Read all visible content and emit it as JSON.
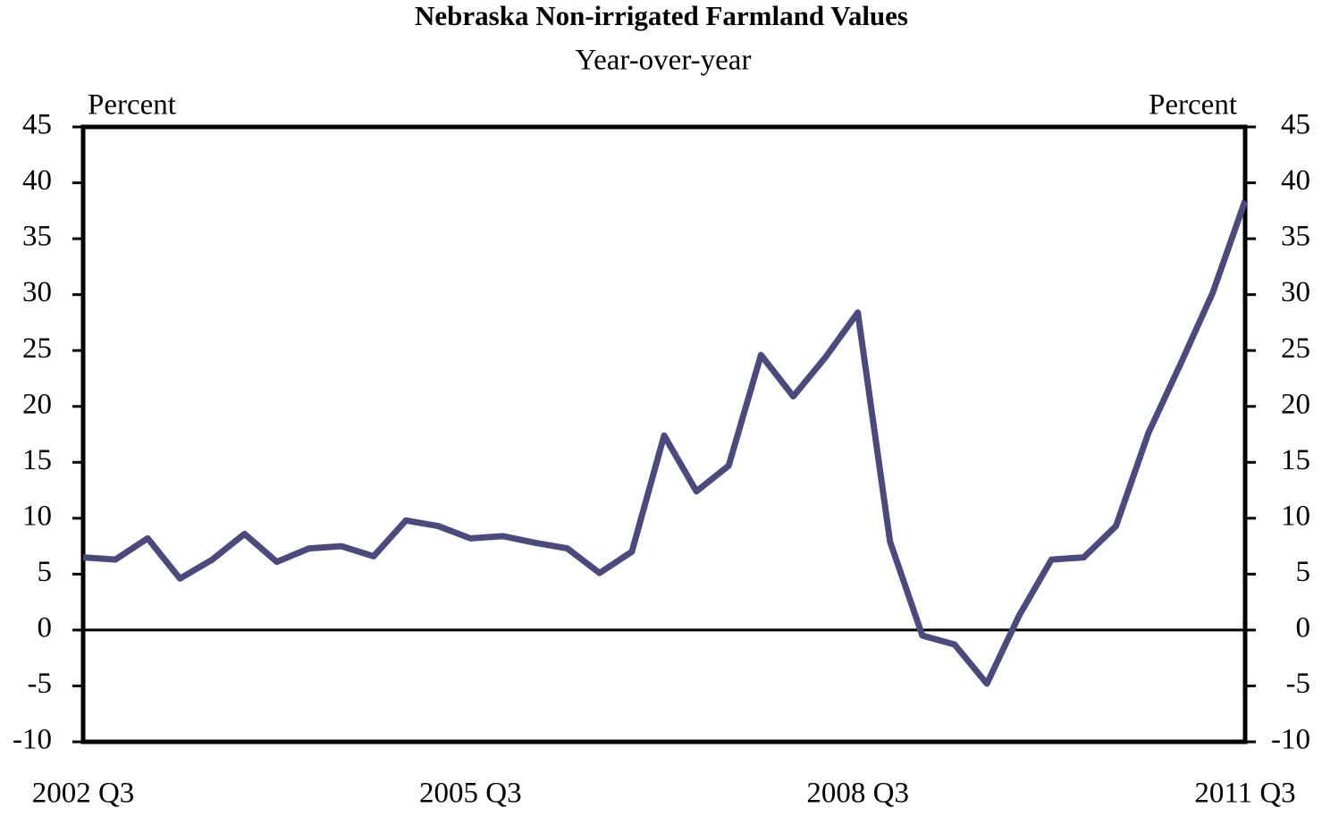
{
  "chart_data": {
    "type": "line",
    "title": "Nebraska Non-irrigated Farmland Values",
    "subtitle": "Year-over-year",
    "y_label": "Percent",
    "y2_label": "Percent",
    "categories": [
      "2002 Q3",
      null,
      null,
      null,
      null,
      null,
      null,
      null,
      null,
      null,
      null,
      null,
      "2005 Q3",
      null,
      null,
      null,
      null,
      null,
      null,
      null,
      null,
      null,
      null,
      null,
      "2008 Q3",
      null,
      null,
      null,
      null,
      null,
      null,
      null,
      null,
      null,
      null,
      null,
      "2011 Q3"
    ],
    "series": [
      {
        "name": "Nebraska Non-irrigated Farmland Values",
        "color": "#4b4a7b",
        "values": [
          6.5,
          6.3,
          8.2,
          4.6,
          6.3,
          8.6,
          6.1,
          7.3,
          7.5,
          6.6,
          9.8,
          9.3,
          8.2,
          8.4,
          7.8,
          7.3,
          5.1,
          7.0,
          17.4,
          12.4,
          14.7,
          24.6,
          20.9,
          24.4,
          28.4,
          7.9,
          -0.5,
          -1.3,
          -4.8,
          1.3,
          6.3,
          6.5,
          9.3,
          17.6,
          23.8,
          30.2,
          38.4
        ]
      }
    ],
    "ylim": [
      -10,
      45
    ],
    "yticks": [
      -10,
      -5,
      0,
      5,
      10,
      15,
      20,
      25,
      30,
      35,
      40,
      45
    ],
    "y2lim": [
      -10,
      45
    ],
    "y2ticks": [
      -10,
      -5,
      0,
      5,
      10,
      15,
      20,
      25,
      30,
      35,
      40,
      45
    ],
    "grid": false
  }
}
